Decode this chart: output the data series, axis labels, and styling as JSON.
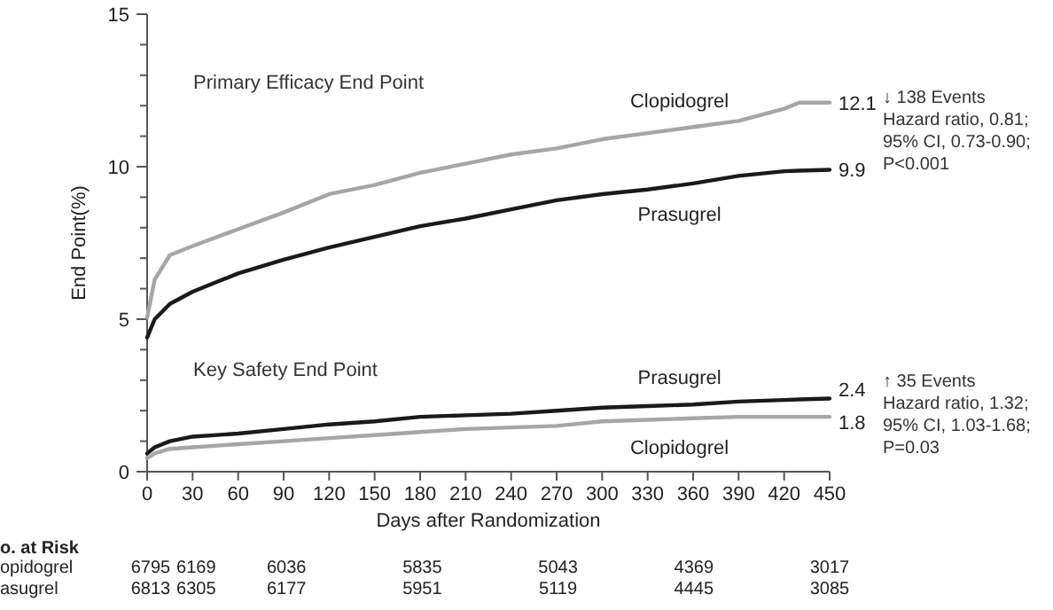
{
  "chart_data": {
    "type": "line",
    "xlabel": "Days after Randomization",
    "ylabel": "End Point(%)",
    "x": [
      0,
      5,
      15,
      30,
      60,
      90,
      120,
      150,
      180,
      210,
      240,
      270,
      300,
      330,
      360,
      390,
      420,
      430,
      450
    ],
    "xlim": [
      0,
      450
    ],
    "xticks": [
      0,
      30,
      60,
      90,
      120,
      150,
      180,
      210,
      240,
      270,
      300,
      330,
      360,
      390,
      420,
      450
    ],
    "ylim": [
      0,
      15
    ],
    "yticks": [
      0,
      {
        "value": 1,
        "label": null
      },
      {
        "value": 2,
        "label": null
      },
      {
        "value": 3,
        "label": null
      },
      {
        "value": 4,
        "label": null
      },
      5,
      {
        "value": 6,
        "label": null
      },
      {
        "value": 7,
        "label": null
      },
      {
        "value": 8,
        "label": null
      },
      {
        "value": 9,
        "label": null
      },
      10,
      {
        "value": 11,
        "label": null
      },
      {
        "value": 12,
        "label": null
      },
      {
        "value": 13,
        "label": null
      },
      {
        "value": 14,
        "label": null
      },
      15
    ],
    "grid": false,
    "marker": "none",
    "line_style": "solid",
    "series": [
      {
        "name": "Clopidogrel",
        "color": "#a6a6a6",
        "values": [
          5.05,
          6.3,
          7.1,
          7.4,
          7.95,
          8.5,
          9.1,
          9.4,
          9.8,
          10.1,
          10.4,
          10.6,
          10.9,
          11.1,
          11.3,
          11.5,
          11.9,
          12.1,
          12.1
        ],
        "value_labels": [
          null,
          null,
          null,
          null,
          null,
          null,
          null,
          null,
          null,
          null,
          null,
          null,
          null,
          null,
          null,
          null,
          null,
          null,
          "12.1"
        ]
      },
      {
        "name": "Prasugrel",
        "color": "#1a1a1a",
        "values": [
          4.4,
          5.0,
          5.5,
          5.9,
          6.5,
          6.95,
          7.35,
          7.7,
          8.05,
          8.3,
          8.6,
          8.9,
          9.1,
          9.25,
          9.45,
          9.7,
          9.85,
          9.87,
          9.9
        ],
        "value_labels": [
          null,
          null,
          null,
          null,
          null,
          null,
          null,
          null,
          null,
          null,
          null,
          null,
          null,
          null,
          null,
          null,
          null,
          null,
          "9.9"
        ]
      },
      {
        "name": "Prasugrel",
        "color": "#1a1a1a",
        "values": [
          0.6,
          0.8,
          1.0,
          1.15,
          1.25,
          1.4,
          1.55,
          1.65,
          1.8,
          1.85,
          1.9,
          2.0,
          2.1,
          2.15,
          2.2,
          2.3,
          2.35,
          2.37,
          2.4
        ],
        "value_labels": [
          null,
          null,
          null,
          null,
          null,
          null,
          null,
          null,
          null,
          null,
          null,
          null,
          null,
          null,
          null,
          null,
          null,
          null,
          "2.4"
        ]
      },
      {
        "name": "Clopidogrel",
        "color": "#a6a6a6",
        "values": [
          0.45,
          0.6,
          0.75,
          0.8,
          0.9,
          1.0,
          1.1,
          1.2,
          1.3,
          1.4,
          1.45,
          1.5,
          1.65,
          1.7,
          1.75,
          1.8,
          1.8,
          1.8,
          1.8
        ],
        "value_labels": [
          null,
          null,
          null,
          null,
          null,
          null,
          null,
          null,
          null,
          null,
          null,
          null,
          null,
          null,
          null,
          null,
          null,
          null,
          "1.8"
        ]
      }
    ],
    "annotations": [
      "Primary Efficacy End Point",
      "Key Safety End Point",
      "↓ 138 Events\nHazard ratio, 0.81;\n95% CI, 0.73-0.90;\nP<0.001",
      "↑ 35 Events\nHazard ratio, 1.32;\n95% CI, 1.03-1.68;\nP=0.03",
      "o. at Risk",
      "opidogrel 6795 6169 6036 5835 5043 4369 3017",
      "asugrel 6813 6305 6177 5951 5119 4445 3085"
    ]
  }
}
